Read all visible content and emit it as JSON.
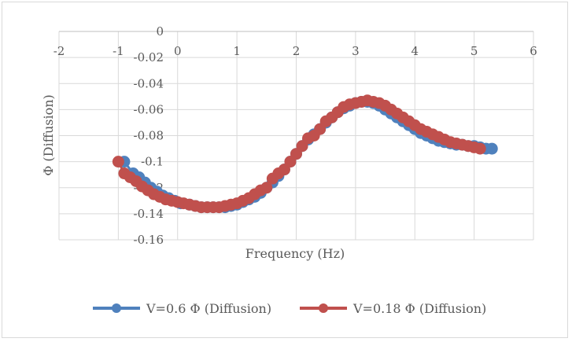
{
  "chart_data": {
    "type": "scatter",
    "title": "",
    "xlabel": "Frequency (Hz)",
    "ylabel": "Φ (Diffusion)",
    "xlim": [
      -2,
      6
    ],
    "ylim": [
      -0.16,
      0
    ],
    "x_ticks": [
      "-2",
      "-1",
      "0",
      "1",
      "2",
      "3",
      "4",
      "5",
      "6"
    ],
    "y_ticks": [
      "0",
      "-0.02",
      "-0.04",
      "-0.06",
      "-0.08",
      "-0.1",
      "-0.12",
      "-0.14",
      "-0.16"
    ],
    "grid": true,
    "legend_position": "bottom",
    "series": [
      {
        "name": "V=0.6 Φ (Diffusion)",
        "color": "#4f81bd",
        "x": [
          -0.9,
          -0.75,
          -0.65,
          -0.55,
          -0.45,
          -0.35,
          -0.25,
          -0.15,
          -0.05,
          0.05,
          0.2,
          0.3,
          0.4,
          0.5,
          0.6,
          0.7,
          0.8,
          0.9,
          1.0,
          1.1,
          1.2,
          1.3,
          1.4,
          1.5,
          1.6,
          1.7,
          1.8,
          1.9,
          2.0,
          2.1,
          2.2,
          2.3,
          2.4,
          2.5,
          2.6,
          2.7,
          2.8,
          2.9,
          3.0,
          3.1,
          3.2,
          3.3,
          3.4,
          3.5,
          3.6,
          3.7,
          3.8,
          3.9,
          4.0,
          4.1,
          4.2,
          4.3,
          4.4,
          4.5,
          4.6,
          4.7,
          4.8,
          4.9,
          5.0,
          5.1,
          5.2,
          5.3
        ],
        "y": [
          -0.1,
          -0.109,
          -0.112,
          -0.116,
          -0.12,
          -0.123,
          -0.126,
          -0.128,
          -0.13,
          -0.132,
          -0.133,
          -0.134,
          -0.135,
          -0.135,
          -0.135,
          -0.135,
          -0.135,
          -0.134,
          -0.133,
          -0.131,
          -0.129,
          -0.127,
          -0.124,
          -0.12,
          -0.116,
          -0.111,
          -0.106,
          -0.1,
          -0.094,
          -0.088,
          -0.083,
          -0.079,
          -0.075,
          -0.07,
          -0.066,
          -0.062,
          -0.059,
          -0.057,
          -0.055,
          -0.054,
          -0.054,
          -0.055,
          -0.057,
          -0.06,
          -0.063,
          -0.066,
          -0.069,
          -0.072,
          -0.075,
          -0.078,
          -0.08,
          -0.082,
          -0.084,
          -0.085,
          -0.086,
          -0.087,
          -0.087,
          -0.088,
          -0.088,
          -0.089,
          -0.09,
          -0.09
        ]
      },
      {
        "name": "V=0.18 Φ (Diffusion)",
        "color": "#c0504d",
        "x": [
          -1.0,
          -0.9,
          -0.8,
          -0.7,
          -0.6,
          -0.5,
          -0.4,
          -0.3,
          -0.2,
          -0.1,
          0.0,
          0.1,
          0.2,
          0.3,
          0.4,
          0.5,
          0.6,
          0.7,
          0.8,
          0.9,
          1.0,
          1.1,
          1.2,
          1.3,
          1.4,
          1.5,
          1.6,
          1.7,
          1.8,
          1.9,
          2.0,
          2.1,
          2.2,
          2.3,
          2.4,
          2.5,
          2.6,
          2.7,
          2.8,
          2.9,
          3.0,
          3.1,
          3.2,
          3.3,
          3.4,
          3.5,
          3.6,
          3.7,
          3.8,
          3.9,
          4.0,
          4.1,
          4.2,
          4.3,
          4.4,
          4.5,
          4.6,
          4.7,
          4.8,
          4.9,
          5.0,
          5.1
        ],
        "y": [
          -0.1,
          -0.109,
          -0.112,
          -0.115,
          -0.119,
          -0.122,
          -0.125,
          -0.127,
          -0.129,
          -0.13,
          -0.131,
          -0.132,
          -0.133,
          -0.134,
          -0.135,
          -0.135,
          -0.135,
          -0.135,
          -0.134,
          -0.133,
          -0.132,
          -0.13,
          -0.128,
          -0.125,
          -0.122,
          -0.12,
          -0.113,
          -0.109,
          -0.106,
          -0.1,
          -0.094,
          -0.088,
          -0.082,
          -0.08,
          -0.075,
          -0.069,
          -0.066,
          -0.062,
          -0.058,
          -0.056,
          -0.055,
          -0.054,
          -0.053,
          -0.054,
          -0.055,
          -0.057,
          -0.06,
          -0.063,
          -0.066,
          -0.069,
          -0.072,
          -0.075,
          -0.077,
          -0.079,
          -0.081,
          -0.083,
          -0.085,
          -0.086,
          -0.087,
          -0.088,
          -0.089,
          -0.09
        ]
      }
    ]
  },
  "legend": {
    "item_1": "V=0.6 Φ (Diffusion)",
    "item_2": "V=0.18 Φ (Diffusion)"
  }
}
